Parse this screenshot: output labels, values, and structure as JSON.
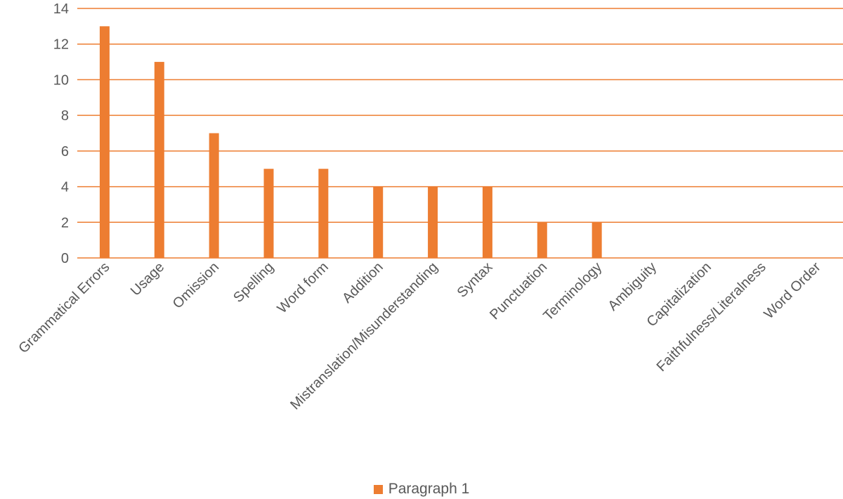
{
  "chart_data": {
    "type": "bar",
    "title": "",
    "xlabel": "",
    "ylabel": "",
    "categories": [
      "Grammatical Errors",
      "Usage",
      "Omission",
      "Spelling",
      "Word form",
      "Addition",
      "Mistranslation/Misunderstanding",
      "Syntax",
      "Punctuation",
      "Terminology",
      "Ambiguity",
      "Capitalization",
      "Faithfulness/Literalness",
      "Word Order"
    ],
    "series": [
      {
        "name": "Paragraph 1",
        "values": [
          13,
          11,
          7,
          5,
          5,
          4,
          4,
          4,
          2,
          2,
          0,
          0,
          0,
          0
        ],
        "color": "#ED7D31"
      }
    ],
    "ylim": [
      0,
      14
    ],
    "yticks": [
      0,
      2,
      4,
      6,
      8,
      10,
      12,
      14
    ],
    "grid": true,
    "gridline_color": "#ED7D31",
    "legend_position": "bottom"
  }
}
